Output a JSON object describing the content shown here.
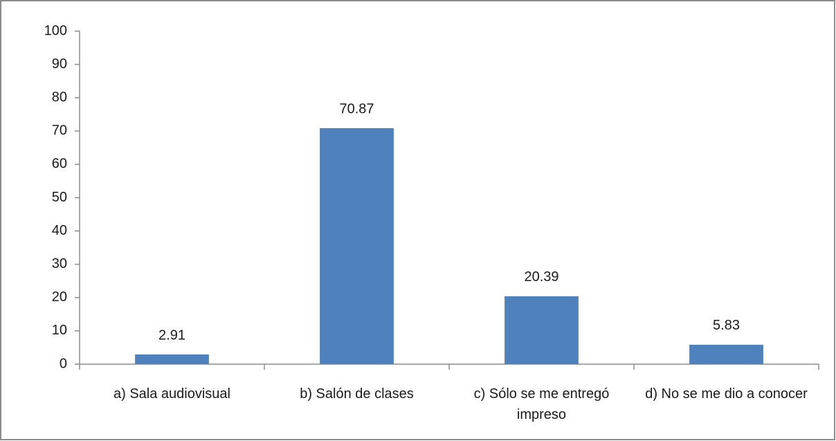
{
  "chart_data": {
    "type": "bar",
    "categories": [
      "a) Sala audiovisual",
      "b) Salón de clases",
      "c) Sólo se me entregó impreso",
      "d) No se me dio a conocer"
    ],
    "values": [
      2.91,
      70.87,
      20.39,
      5.83
    ],
    "color": "#4f81bd",
    "ylim": [
      0,
      100
    ],
    "yticks": [
      0,
      10,
      20,
      30,
      40,
      50,
      60,
      70,
      80,
      90,
      100
    ],
    "grid": false
  }
}
